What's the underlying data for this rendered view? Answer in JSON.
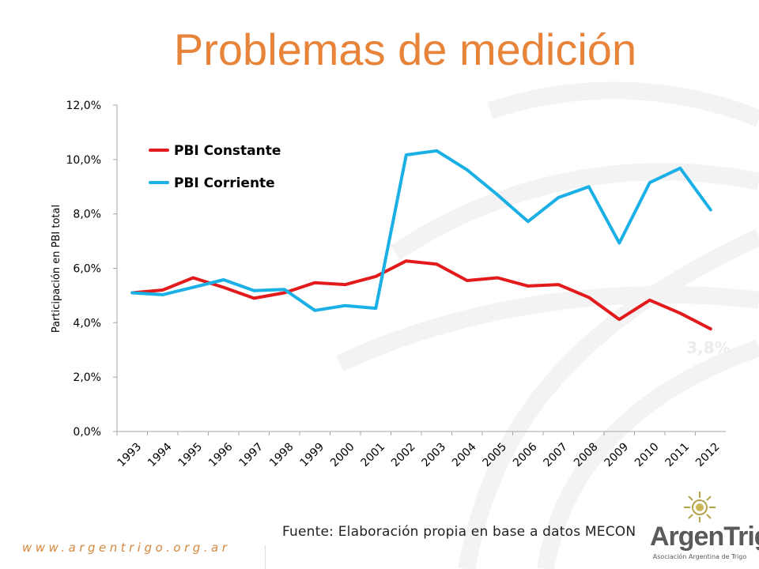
{
  "slide": {
    "title": "Problemas de medición",
    "source": "Fuente: Elaboración propia en base a datos MECON",
    "website": "www.argentrigo.org.ar",
    "logo_name": "ArgenTrigo",
    "logo_sub": "Asociación Argentina de Trigo"
  },
  "chart_data": {
    "type": "line",
    "title": "",
    "xlabel": "",
    "ylabel": "Participación en PBI total",
    "ylim": [
      0,
      12
    ],
    "yticks": [
      0,
      2,
      4,
      6,
      8,
      10,
      12
    ],
    "ytick_labels": [
      "0,0%",
      "2,0%",
      "4,0%",
      "6,0%",
      "8,0%",
      "10,0%",
      "12,0%"
    ],
    "categories": [
      "1993",
      "1994",
      "1995",
      "1996",
      "1997",
      "1998",
      "1999",
      "2000",
      "2001",
      "2002",
      "2003",
      "2004",
      "2005",
      "2006",
      "2007",
      "2008",
      "2009",
      "2010",
      "2011",
      "2012"
    ],
    "series": [
      {
        "name": "PBI Constante",
        "color": "#e31a1c",
        "values": [
          5.1,
          5.2,
          5.65,
          5.3,
          4.9,
          5.1,
          5.47,
          5.4,
          5.7,
          6.27,
          6.15,
          5.55,
          5.65,
          5.35,
          5.4,
          4.93,
          4.12,
          4.83,
          4.35,
          3.77
        ]
      },
      {
        "name": "PBI Corriente",
        "color": "#1ab0e6",
        "values": [
          5.1,
          5.03,
          5.3,
          5.58,
          5.18,
          5.22,
          4.45,
          4.63,
          4.53,
          10.17,
          10.32,
          9.62,
          8.7,
          7.72,
          8.6,
          9.0,
          6.93,
          9.15,
          9.68,
          8.15
        ]
      }
    ],
    "legend_position": "top-left",
    "annotation": "3,8%"
  },
  "colors": {
    "title": "#e8833a",
    "axis": "#a6a6a6",
    "text": "#000000"
  }
}
